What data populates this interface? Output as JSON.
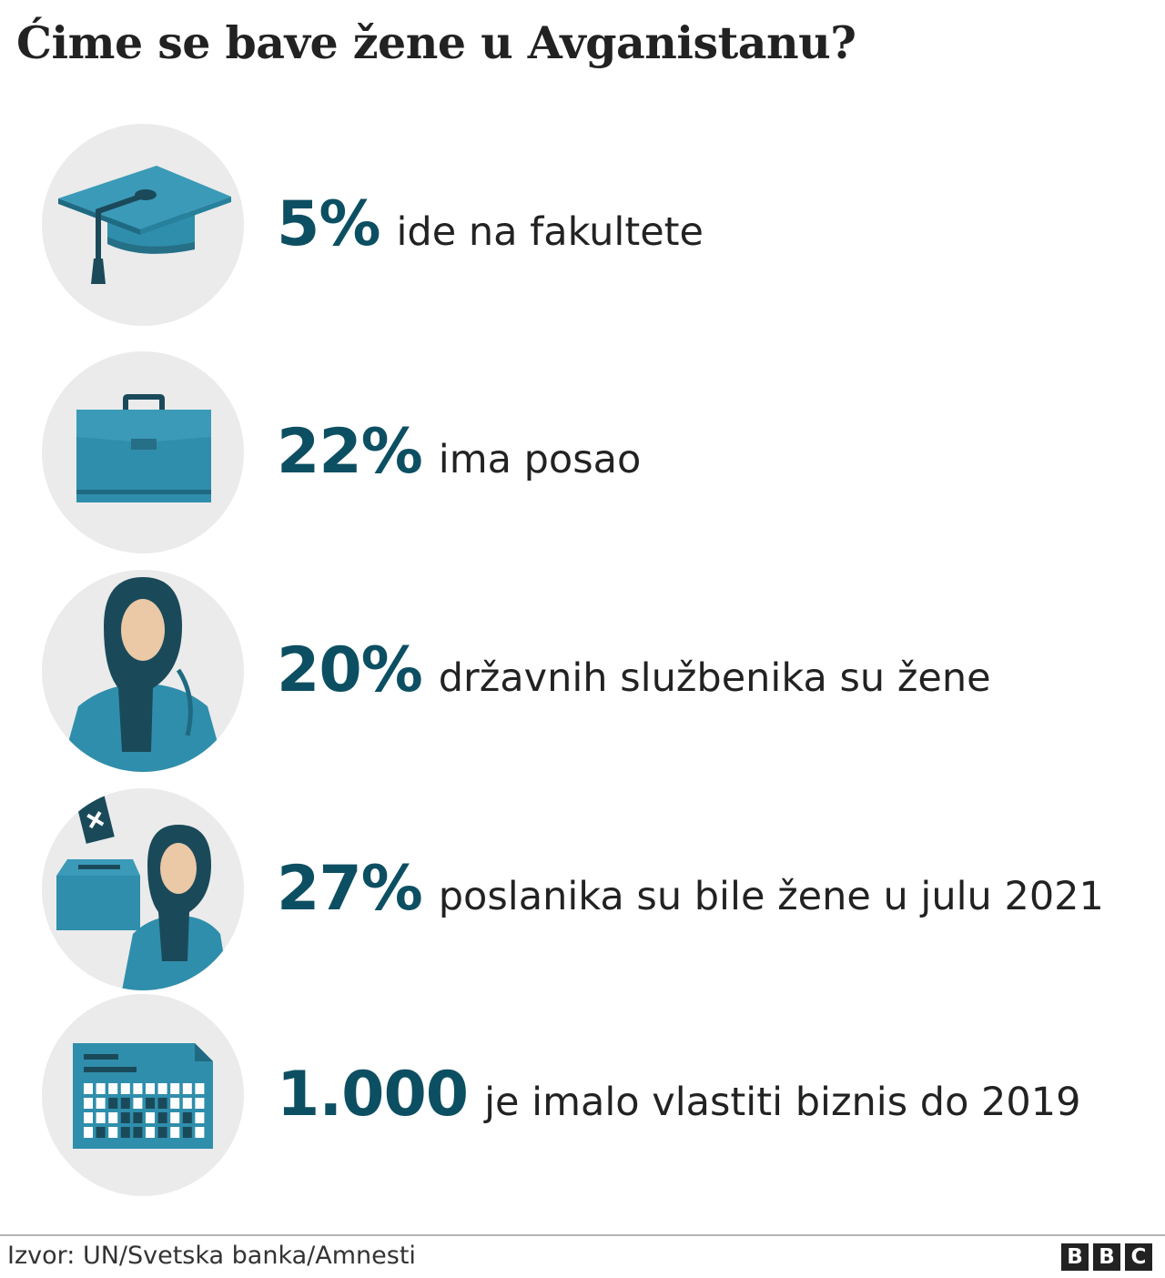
{
  "title": "Ćime se bave žene u Avganistanu?",
  "colors": {
    "accent": "#0d4f62",
    "icon_primary": "#2f8eab",
    "circle_bg": "#ebebeb"
  },
  "stats": [
    {
      "icon": "graduation-cap-icon",
      "value": "5%",
      "label": "ide na fakultete"
    },
    {
      "icon": "briefcase-icon",
      "value": "22%",
      "label": "ima posao"
    },
    {
      "icon": "woman-in-hijab-icon",
      "value": "20%",
      "label": "državnih službenika su žene"
    },
    {
      "icon": "ballot-box-woman-icon",
      "value": "27%",
      "label": "poslanika su bile žene u julu 2021"
    },
    {
      "icon": "business-calendar-chart-icon",
      "value": "1.000",
      "label": "je imalo vlastiti biznis do 2019"
    }
  ],
  "footer": {
    "source": "Izvor: UN/Svetska banka/Amnesti",
    "logo": [
      "B",
      "B",
      "C"
    ]
  }
}
